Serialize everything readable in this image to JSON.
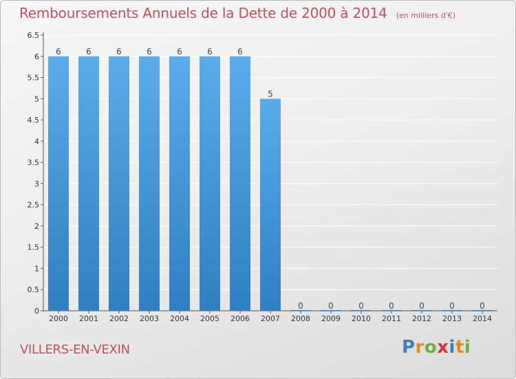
{
  "header": {
    "title": "Remboursements Annuels de la Dette de 2000 à 2014",
    "subtitle": "(en milliers d'€)"
  },
  "footer": {
    "commune": "VILLERS-EN-VEXIN",
    "logo_letters": [
      {
        "ch": "P",
        "color": "#3a7fc4"
      },
      {
        "ch": "r",
        "color": "#e8891c"
      },
      {
        "ch": "o",
        "color": "#6bb33a"
      },
      {
        "ch": "x",
        "color": "#d8333a"
      },
      {
        "ch": "i",
        "color": "#3a7fc4"
      },
      {
        "ch": "t",
        "color": "#e8891c"
      },
      {
        "ch": "i",
        "color": "#6bb33a"
      }
    ]
  },
  "chart_data": {
    "type": "bar",
    "title": "Remboursements Annuels de la Dette de 2000 à 2014",
    "categories": [
      "2000",
      "2001",
      "2002",
      "2003",
      "2004",
      "2005",
      "2006",
      "2007",
      "2008",
      "2009",
      "2010",
      "2011",
      "2012",
      "2013",
      "2014"
    ],
    "values": [
      6,
      6,
      6,
      6,
      6,
      6,
      6,
      5,
      0,
      0,
      0,
      0,
      0,
      0,
      0
    ],
    "data_labels": [
      "6",
      "6",
      "6",
      "6",
      "6",
      "6",
      "6",
      "5",
      "0",
      "0",
      "0",
      "0",
      "0",
      "0",
      "0"
    ],
    "y_ticks": [
      "0",
      "0.5",
      "1",
      "1.5",
      "2",
      "2.5",
      "3",
      "3.5",
      "4",
      "4.5",
      "5",
      "5.5",
      "6",
      "6.5"
    ],
    "ylim": [
      0,
      6.5
    ],
    "grid": true,
    "bar_color_top": "#5aacea",
    "bar_color_bottom": "#2f7fc2",
    "grid_color": "#ffffff"
  }
}
